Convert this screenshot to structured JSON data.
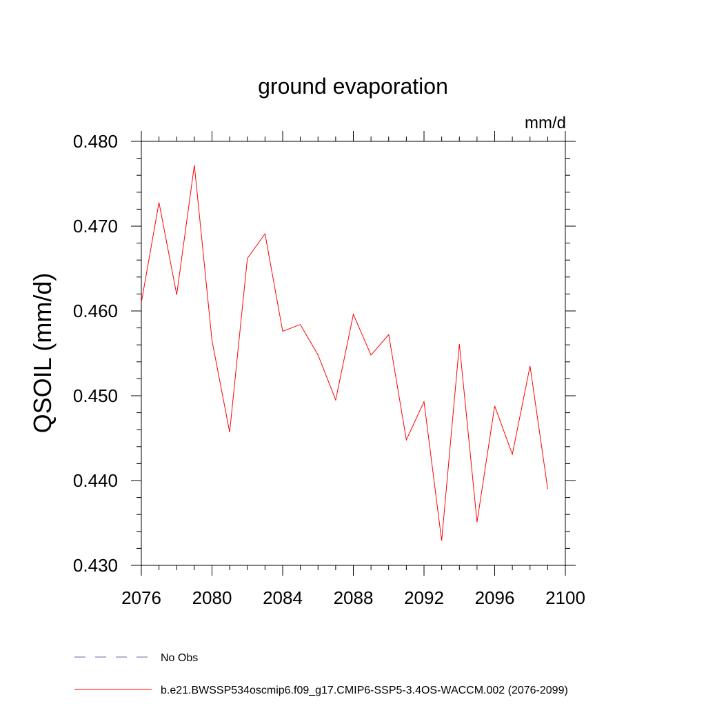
{
  "chart_data": {
    "type": "line",
    "title": "ground evaporation",
    "units": "mm/d",
    "xlabel": "",
    "ylabel": "QSOIL  (mm/d)",
    "xlim": [
      2076,
      2100
    ],
    "ylim": [
      0.43,
      0.48
    ],
    "x_ticks": [
      2076,
      2080,
      2084,
      2088,
      2092,
      2096,
      2100
    ],
    "x_tick_labels": [
      "2076",
      "2080",
      "2084",
      "2088",
      "2092",
      "2096",
      "2100"
    ],
    "y_ticks": [
      0.43,
      0.44,
      0.45,
      0.46,
      0.47,
      0.48
    ],
    "y_tick_labels": [
      "0.430",
      "0.440",
      "0.450",
      "0.460",
      "0.470",
      "0.480"
    ],
    "grid": false,
    "legend_position": "bottom",
    "series": [
      {
        "name": "b.e21.BWSSP534oscmip6.f09_g17.CMIP6-SSP5-3.4OS-WACCM.002 (2076-2099)",
        "color": "#ff0000",
        "style": "solid",
        "x": [
          2076,
          2077,
          2078,
          2079,
          2080,
          2081,
          2082,
          2083,
          2084,
          2085,
          2086,
          2087,
          2088,
          2089,
          2090,
          2091,
          2092,
          2093,
          2094,
          2095,
          2096,
          2097,
          2098,
          2099
        ],
        "values": [
          0.461,
          0.4728,
          0.4619,
          0.4772,
          0.4565,
          0.4457,
          0.4662,
          0.4691,
          0.4576,
          0.4584,
          0.4548,
          0.4495,
          0.4596,
          0.4548,
          0.4572,
          0.4448,
          0.4493,
          0.4329,
          0.4561,
          0.4351,
          0.4488,
          0.4431,
          0.4535,
          0.439
        ]
      }
    ],
    "legend": [
      {
        "label": "No Obs",
        "color": "#6666aa",
        "style": "dashed"
      },
      {
        "label": "b.e21.BWSSP534oscmip6.f09_g17.CMIP6-SSP5-3.4OS-WACCM.002 (2076-2099)",
        "color": "#ff0000",
        "style": "solid"
      }
    ]
  }
}
